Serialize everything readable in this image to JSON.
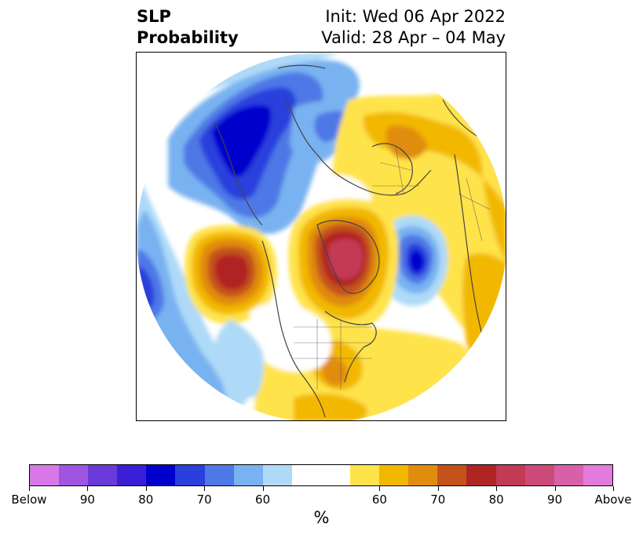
{
  "title": {
    "left_line1": "SLP",
    "left_line2": "Probability",
    "right_line1": "Init: Wed 06 Apr 2022",
    "right_line2": "Valid: 28 Apr – 04 May"
  },
  "map": {
    "projection": "north-polar-stereographic",
    "regions": [
      {
        "name": "north-pacific-siberia-below",
        "color": "#0000cd"
      },
      {
        "name": "north-atlantic-below",
        "color": "#2a2acd"
      },
      {
        "name": "greenland-above",
        "color": "#c23a53"
      },
      {
        "name": "gulf-of-alaska-above",
        "color": "#b22222"
      },
      {
        "name": "europe-russia-above",
        "color": "#f2b800"
      },
      {
        "name": "eastern-us-above",
        "color": "#f2b800"
      }
    ]
  },
  "colorbar": {
    "colors": [
      "#d877e8",
      "#9f55e0",
      "#6b3ada",
      "#3a1fd6",
      "#0000cd",
      "#2a3fdc",
      "#4e78e6",
      "#79b2f0",
      "#aedaf8",
      "#ffffff",
      "#ffffff",
      "#ffe34b",
      "#f2b800",
      "#e08c0e",
      "#c4521a",
      "#b12424",
      "#c23a53",
      "#cc4b7a",
      "#d860a8",
      "#e37ade"
    ],
    "tick_labels": [
      "Below",
      "90",
      "80",
      "70",
      "60",
      "60",
      "70",
      "80",
      "90",
      "Above"
    ],
    "unit": "%"
  }
}
